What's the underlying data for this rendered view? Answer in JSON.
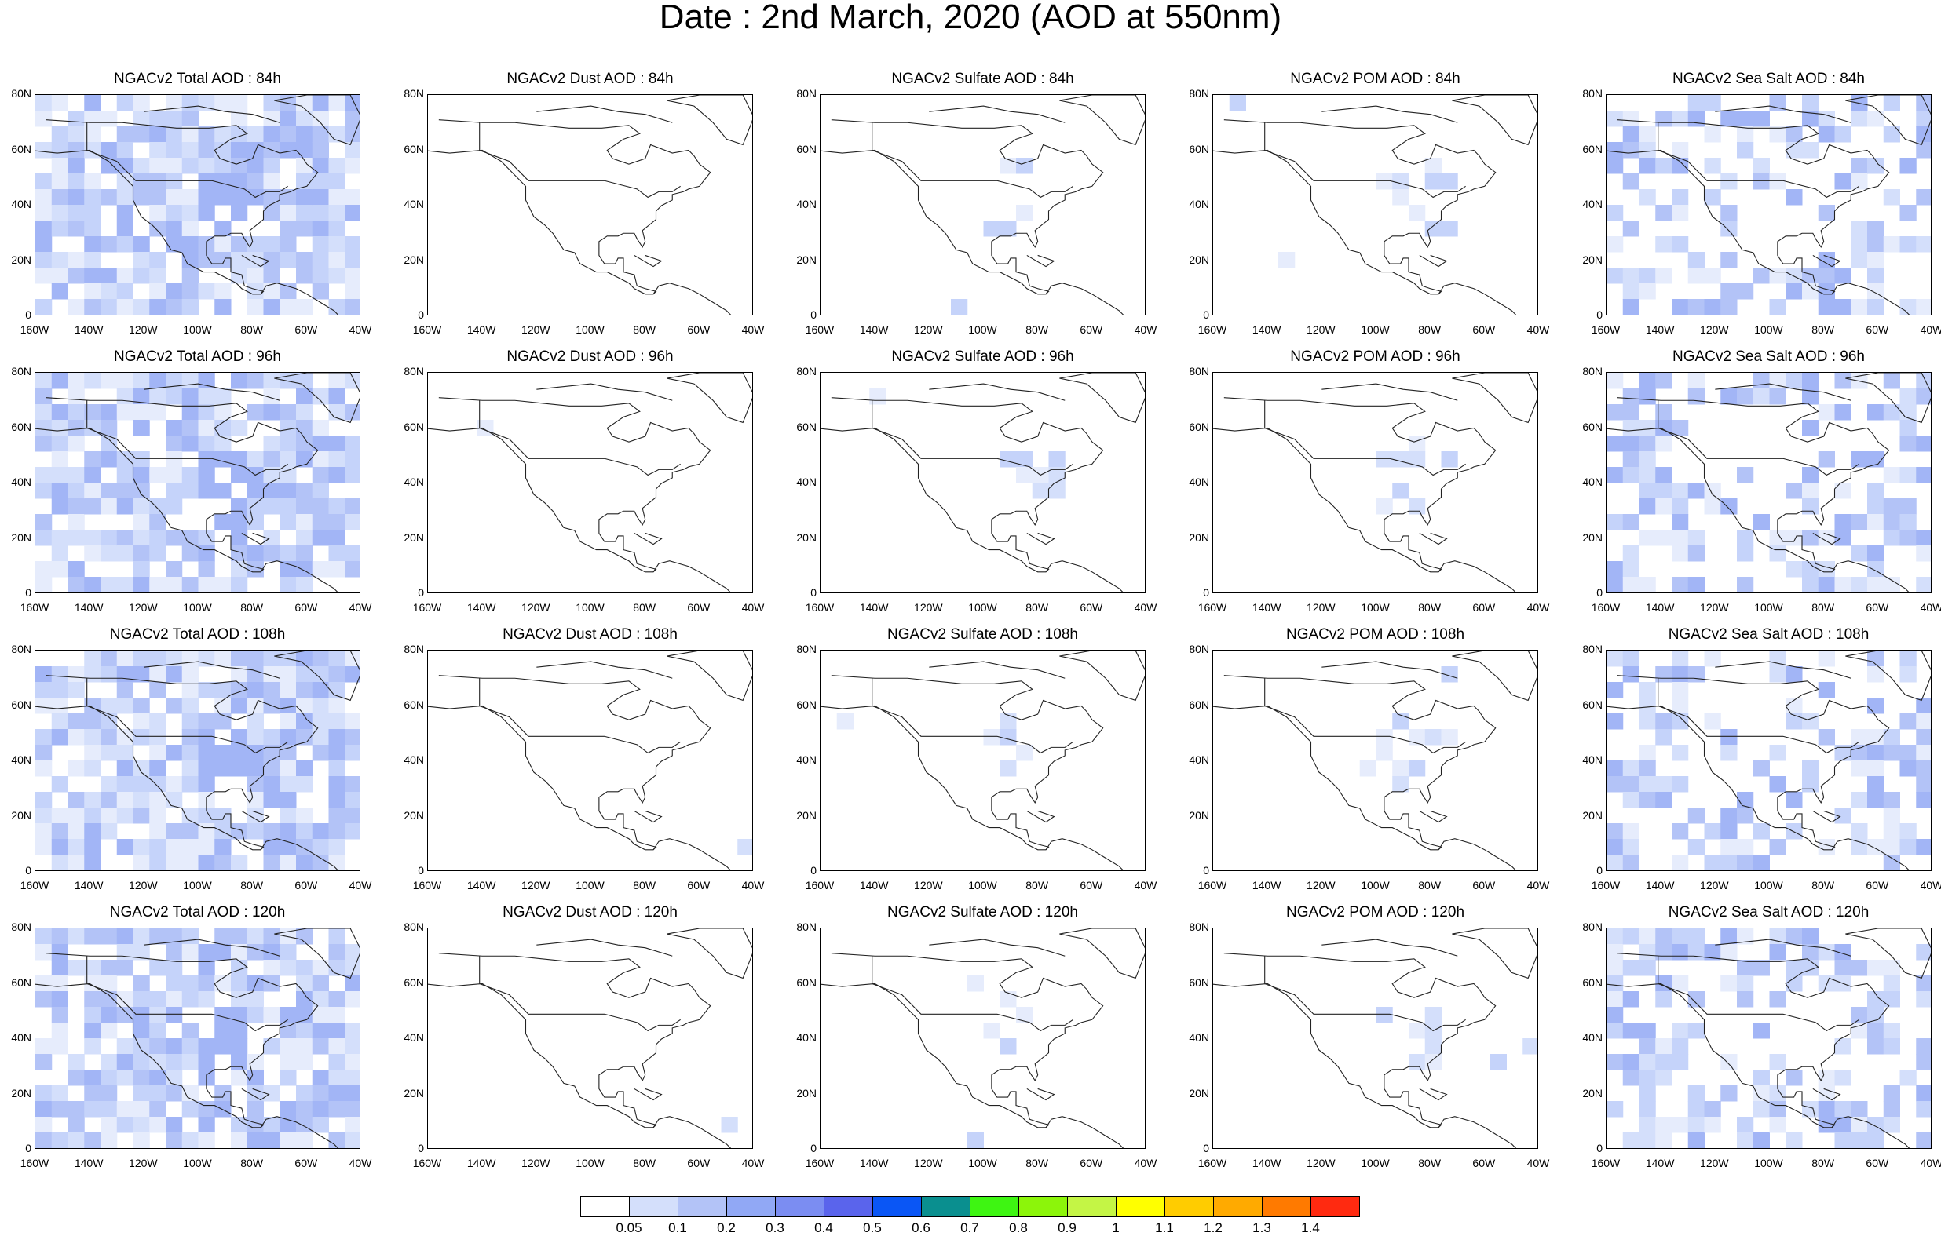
{
  "title": "Date : 2nd March, 2020 (AOD at 550nm)",
  "lat_ticks": [
    "80N",
    "60N",
    "40N",
    "20N",
    "0"
  ],
  "lon_ticks": [
    "160W",
    "140W",
    "120W",
    "100W",
    "80W",
    "60W",
    "40W"
  ],
  "panels": [
    {
      "title": "NGACv2 Total AOD : 84h",
      "species": "total",
      "intensity": 1.0
    },
    {
      "title": "NGACv2 Dust AOD : 84h",
      "species": "dust",
      "intensity": 0.1
    },
    {
      "title": "NGACv2 Sulfate AOD : 84h",
      "species": "sulfate",
      "intensity": 0.3
    },
    {
      "title": "NGACv2 POM AOD : 84h",
      "species": "pom",
      "intensity": 0.4
    },
    {
      "title": "NGACv2 Sea Salt AOD : 84h",
      "species": "seasalt",
      "intensity": 0.8
    },
    {
      "title": "NGACv2 Total AOD : 96h",
      "species": "total",
      "intensity": 1.0
    },
    {
      "title": "NGACv2 Dust AOD : 96h",
      "species": "dust",
      "intensity": 0.15
    },
    {
      "title": "NGACv2 Sulfate AOD : 96h",
      "species": "sulfate",
      "intensity": 0.35
    },
    {
      "title": "NGACv2 POM AOD : 96h",
      "species": "pom",
      "intensity": 0.45
    },
    {
      "title": "NGACv2 Sea Salt AOD : 96h",
      "species": "seasalt",
      "intensity": 0.85
    },
    {
      "title": "NGACv2 Total AOD : 108h",
      "species": "total",
      "intensity": 1.0
    },
    {
      "title": "NGACv2 Dust AOD : 108h",
      "species": "dust",
      "intensity": 0.2
    },
    {
      "title": "NGACv2 Sulfate AOD : 108h",
      "species": "sulfate",
      "intensity": 0.4
    },
    {
      "title": "NGACv2 POM AOD : 108h",
      "species": "pom",
      "intensity": 0.45
    },
    {
      "title": "NGACv2 Sea Salt AOD : 108h",
      "species": "seasalt",
      "intensity": 0.9
    },
    {
      "title": "NGACv2 Total AOD : 120h",
      "species": "total",
      "intensity": 1.0
    },
    {
      "title": "NGACv2 Dust AOD : 120h",
      "species": "dust",
      "intensity": 0.2
    },
    {
      "title": "NGACv2 Sulfate AOD : 120h",
      "species": "sulfate",
      "intensity": 0.4
    },
    {
      "title": "NGACv2 POM AOD : 120h",
      "species": "pom",
      "intensity": 0.45
    },
    {
      "title": "NGACv2 Sea Salt  AOD : 120h",
      "species": "seasalt",
      "intensity": 0.9
    }
  ],
  "colorbar": {
    "colors": [
      "#ffffff",
      "#d4dffb",
      "#b3c3f7",
      "#91a8f5",
      "#7b8df2",
      "#5a64ec",
      "#0a56f5",
      "#0a8f8f",
      "#3ef512",
      "#8cf50a",
      "#c4f545",
      "#ffff00",
      "#ffcc00",
      "#ffaa00",
      "#ff7a00",
      "#ff2a10"
    ],
    "labels": [
      "0.05",
      "0.1",
      "0.2",
      "0.3",
      "0.4",
      "0.5",
      "0.6",
      "0.7",
      "0.8",
      "0.9",
      "1",
      "1.1",
      "1.2",
      "1.3",
      "1.4"
    ]
  }
}
